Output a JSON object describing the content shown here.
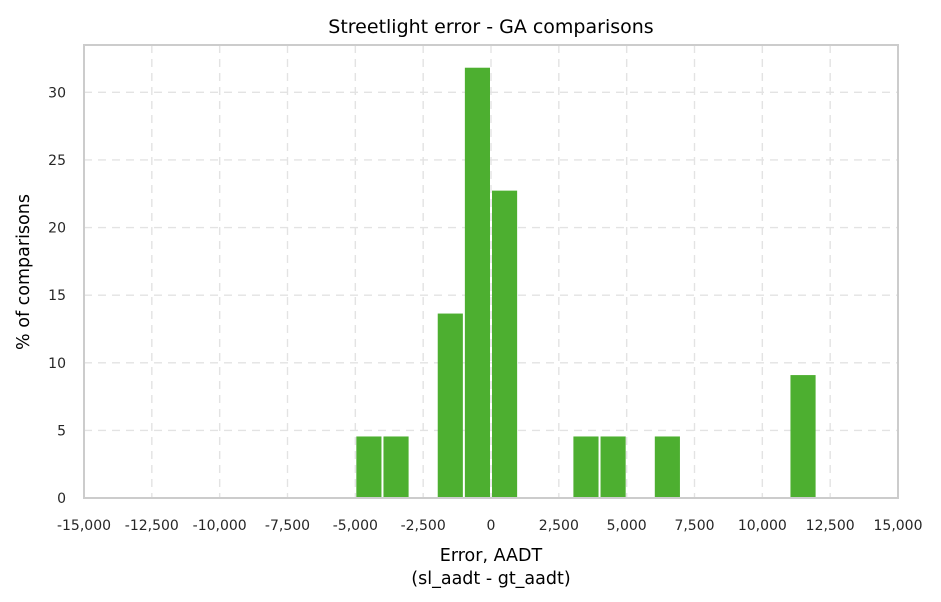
{
  "chart_data": {
    "type": "bar",
    "title": "Streetlight error - GA comparisons",
    "xlabel_line1": "Error, AADT",
    "xlabel_line2": "(sl_aadt - gt_aadt)",
    "ylabel": "% of comparisons",
    "xlim": [
      -15000,
      15000
    ],
    "ylim": [
      0,
      33.5
    ],
    "x_ticks": [
      -15000,
      -12500,
      -10000,
      -7500,
      -5000,
      -2500,
      0,
      2500,
      5000,
      7500,
      10000,
      12500,
      15000
    ],
    "x_tick_labels": [
      "-15,000",
      "-12,500",
      "-10,000",
      "-7,500",
      "-5,000",
      "-2,500",
      "0",
      "2,500",
      "5,000",
      "7,500",
      "10,000",
      "12,500",
      "15,000"
    ],
    "y_ticks": [
      0,
      5,
      10,
      15,
      20,
      25,
      30
    ],
    "y_tick_labels": [
      "0",
      "5",
      "10",
      "15",
      "20",
      "25",
      "30"
    ],
    "grid": true,
    "bar_color": "#4daf30",
    "bins": [
      {
        "x0": -5000,
        "x1": -4000,
        "value": 4.55
      },
      {
        "x0": -4000,
        "x1": -3000,
        "value": 4.55
      },
      {
        "x0": -2000,
        "x1": -1000,
        "value": 13.64
      },
      {
        "x0": -1000,
        "x1": 0,
        "value": 31.82
      },
      {
        "x0": 0,
        "x1": 1000,
        "value": 22.73
      },
      {
        "x0": 3000,
        "x1": 4000,
        "value": 4.55
      },
      {
        "x0": 4000,
        "x1": 5000,
        "value": 4.55
      },
      {
        "x0": 6000,
        "x1": 7000,
        "value": 4.55
      },
      {
        "x0": 11000,
        "x1": 12000,
        "value": 9.09
      }
    ]
  }
}
